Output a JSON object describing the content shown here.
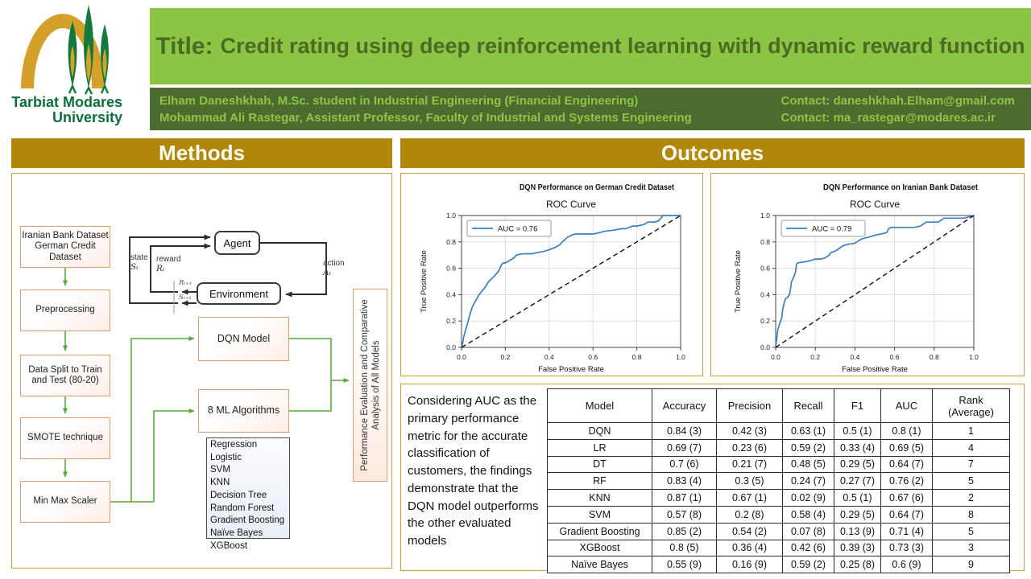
{
  "colors": {
    "gold_header": "#B1870B",
    "panel_border_gold": "#C5A23A",
    "title_bar_green": "#8CC445",
    "title_text_green": "#4A6B21",
    "authors_bar_green": "#4C6B2F",
    "logo_green": "#0C6E3C",
    "logo_gold": "#D4A02A",
    "flow_box_orange": "#E89A6A",
    "arrow_green": "#56A83C",
    "roc_blue": "#3C7FC0"
  },
  "header": {
    "university_name_line1": "Tarbiat Modares",
    "university_name_line2": "University",
    "title_prefix": "Title:",
    "title": "Credit rating using deep reinforcement learning with dynamic reward function",
    "authors": [
      "Elham Daneshkhah, M.Sc. student in Industrial Engineering (Financial Engineering)",
      "Mohammad Ali Rastegar, Assistant Professor, Faculty of Industrial and Systems Engineering"
    ],
    "contacts": [
      "Contact: daneshkhah.Elham@gmail.com",
      "Contact: ma_rastegar@modares.ac.ir"
    ]
  },
  "methods": {
    "section_title": "Methods",
    "flow_boxes": [
      "Iranian Bank Dataset\nGerman Credit\nDataset",
      "Preprocessing",
      "Data Split to Train\nand Test (80-20)",
      "SMOTE technique",
      "Min Max Scaler"
    ],
    "rl": {
      "agent": "Agent",
      "environment": "Environment",
      "state": "state",
      "state_symbol": "Sₜ",
      "reward": "reward",
      "reward_symbol": "Rₜ",
      "action": "action",
      "action_symbol": "Aₜ",
      "next_reward_symbol": "Rₜ₊₁",
      "next_state_symbol": "Sₜ₊₁"
    },
    "dqn_box": "DQN Model",
    "ml_box": "8 ML Algorithms",
    "algorithms": [
      "Regression Logistic",
      "SVM",
      "KNN",
      "Decision Tree",
      "Random Forest",
      "Gradient Boosting",
      "Naïve Bayes",
      "XGBoost"
    ],
    "evaluation_box": "Performance Evaluation and Comparative Analysis of All Models"
  },
  "outcomes": {
    "section_title": "Outcomes",
    "summary": "Considering AUC as the primary performance metric for the accurate classification of customers, the findings demonstrate that the DQN model outperforms the other evaluated models",
    "table": {
      "headers": [
        "Model",
        "Accuracy",
        "Precision",
        "Recall",
        "F1",
        "AUC",
        "Rank\n(Average)"
      ],
      "rows": [
        [
          "DQN",
          "0.84 (3)",
          "0.42 (3)",
          "0.63 (1)",
          "0.5 (1)",
          "0.8 (1)",
          "1"
        ],
        [
          "LR",
          "0.69 (7)",
          "0.23 (6)",
          "0.59 (2)",
          "0.33 (4)",
          "0.69 (5)",
          "4"
        ],
        [
          "DT",
          "0.7 (6)",
          "0.21 (7)",
          "0.48 (5)",
          "0.29 (5)",
          "0.64 (7)",
          "7"
        ],
        [
          "RF",
          "0.83 (4)",
          "0.3 (5)",
          "0.24 (7)",
          "0.27 (7)",
          "0.76 (2)",
          "5"
        ],
        [
          "KNN",
          "0.87 (1)",
          "0.67 (1)",
          "0.02 (9)",
          "0.5 (1)",
          "0.67 (6)",
          "2"
        ],
        [
          "SVM",
          "0.57 (8)",
          "0.2 (8)",
          "0.58 (4)",
          "0.29 (5)",
          "0.64 (7)",
          "8"
        ],
        [
          "Gradient Boosting",
          "0.85 (2)",
          "0.54 (2)",
          "0.07 (8)",
          "0.13 (9)",
          "0.71 (4)",
          "5"
        ],
        [
          "XGBoost",
          "0.8 (5)",
          "0.36 (4)",
          "0.42 (6)",
          "0.39 (3)",
          "0.73 (3)",
          "3"
        ],
        [
          "Naïve Bayes",
          "0.55 (9)",
          "0.16 (9)",
          "0.59 (2)",
          "0.25 (8)",
          "0.6 (9)",
          "9"
        ]
      ]
    }
  },
  "chart_data": [
    {
      "type": "line",
      "supertitle": "DQN Performance on German Credit Dataset",
      "title": "ROC Curve",
      "xlabel": "False Positive Rate",
      "ylabel": "True Positive Rate",
      "legend": [
        "AUC = 0.76"
      ],
      "legend_position": "upper left",
      "grid": true,
      "xlim": [
        0,
        1
      ],
      "ylim": [
        0,
        1
      ],
      "xticks": [
        0.0,
        0.2,
        0.4,
        0.6,
        0.8,
        1.0
      ],
      "yticks": [
        0.0,
        0.2,
        0.4,
        0.6,
        0.8,
        1.0
      ],
      "series": [
        {
          "name": "roc-curve",
          "color": "#3C7FC0",
          "style": "solid",
          "x": [
            0,
            0.005,
            0.01,
            0.02,
            0.03,
            0.04,
            0.05,
            0.06,
            0.07,
            0.08,
            0.09,
            0.1,
            0.11,
            0.12,
            0.13,
            0.15,
            0.16,
            0.17,
            0.18,
            0.19,
            0.2,
            0.22,
            0.24,
            0.25,
            0.28,
            0.32,
            0.35,
            0.38,
            0.4,
            0.43,
            0.45,
            0.46,
            0.48,
            0.5,
            0.52,
            0.56,
            0.6,
            0.63,
            0.65,
            0.7,
            0.73,
            0.75,
            0.78,
            0.8,
            0.83,
            0.85,
            0.88,
            0.9,
            0.91,
            0.92,
            1.0
          ],
          "y": [
            0,
            0.03,
            0.08,
            0.14,
            0.2,
            0.26,
            0.31,
            0.34,
            0.37,
            0.4,
            0.42,
            0.44,
            0.46,
            0.49,
            0.51,
            0.54,
            0.56,
            0.58,
            0.62,
            0.64,
            0.64,
            0.66,
            0.68,
            0.7,
            0.71,
            0.71,
            0.72,
            0.73,
            0.74,
            0.76,
            0.78,
            0.8,
            0.83,
            0.85,
            0.86,
            0.86,
            0.86,
            0.87,
            0.88,
            0.89,
            0.9,
            0.9,
            0.92,
            0.92,
            0.93,
            0.95,
            0.95,
            0.96,
            0.98,
            1.0,
            1.0
          ]
        },
        {
          "name": "chance-diagonal",
          "color": "#111111",
          "style": "dashed",
          "x": [
            0,
            1
          ],
          "y": [
            0,
            1
          ]
        }
      ]
    },
    {
      "type": "line",
      "supertitle": "DQN Performance on Iranian Bank Dataset",
      "title": "ROC Curve",
      "xlabel": "False Positive Rate",
      "ylabel": "True Positive Rate",
      "legend": [
        "AUC = 0.79"
      ],
      "legend_position": "upper left",
      "grid": true,
      "xlim": [
        0,
        1
      ],
      "ylim": [
        0,
        1
      ],
      "xticks": [
        0.0,
        0.2,
        0.4,
        0.6,
        0.8,
        1.0
      ],
      "yticks": [
        0.0,
        0.2,
        0.4,
        0.6,
        0.8,
        1.0
      ],
      "series": [
        {
          "name": "roc-curve",
          "color": "#3C7FC0",
          "style": "solid",
          "x": [
            0,
            0.005,
            0.01,
            0.02,
            0.03,
            0.035,
            0.04,
            0.05,
            0.06,
            0.07,
            0.075,
            0.08,
            0.09,
            0.1,
            0.105,
            0.11,
            0.13,
            0.15,
            0.18,
            0.2,
            0.23,
            0.25,
            0.27,
            0.28,
            0.3,
            0.32,
            0.34,
            0.36,
            0.4,
            0.41,
            0.43,
            0.45,
            0.48,
            0.5,
            0.53,
            0.56,
            0.57,
            0.58,
            0.65,
            0.7,
            0.73,
            0.75,
            0.76,
            0.82,
            0.85,
            0.9,
            0.95,
            1.0
          ],
          "y": [
            0,
            0.06,
            0.13,
            0.18,
            0.22,
            0.28,
            0.32,
            0.37,
            0.38,
            0.4,
            0.45,
            0.5,
            0.53,
            0.57,
            0.63,
            0.64,
            0.645,
            0.65,
            0.66,
            0.67,
            0.67,
            0.68,
            0.7,
            0.72,
            0.73,
            0.75,
            0.77,
            0.78,
            0.79,
            0.8,
            0.82,
            0.83,
            0.84,
            0.85,
            0.86,
            0.87,
            0.9,
            0.91,
            0.91,
            0.91,
            0.92,
            0.94,
            0.95,
            0.95,
            0.98,
            0.98,
            0.98,
            1.0
          ]
        },
        {
          "name": "chance-diagonal",
          "color": "#111111",
          "style": "dashed",
          "x": [
            0,
            1
          ],
          "y": [
            0,
            1
          ]
        }
      ]
    }
  ]
}
